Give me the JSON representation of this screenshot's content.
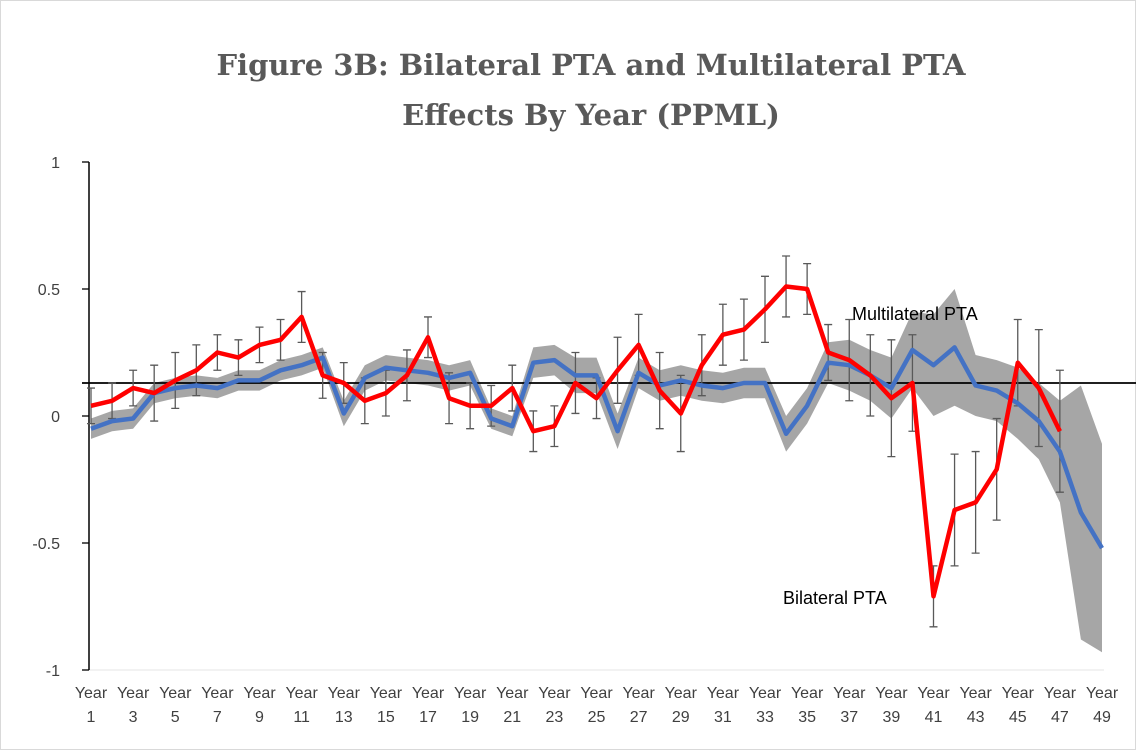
{
  "chart_data": {
    "type": "line",
    "title": "Figure 3B: Bilateral PTA and Multilateral PTA Effects By Year (PPML)",
    "categories": [
      "Year 1",
      null,
      "Year 3",
      null,
      "Year 5",
      null,
      "Year 7",
      null,
      "Year 9",
      null,
      "Year 11",
      null,
      "Year 13",
      null,
      "Year 15",
      null,
      "Year 17",
      null,
      "Year 19",
      null,
      "Year 21",
      null,
      "Year 23",
      null,
      "Year 25",
      null,
      "Year 27",
      null,
      "Year 29",
      null,
      "Year 31",
      null,
      "Year 33",
      null,
      "Year 35",
      null,
      "Year 37",
      null,
      "Year 39",
      null,
      "Year 41",
      null,
      "Year 43",
      null,
      "Year 45",
      null,
      "Year 47",
      null,
      "Year 49"
    ],
    "series": [
      {
        "name": "Bilateral PTA",
        "color": "#ff0000",
        "values": [
          0.04,
          0.06,
          0.11,
          0.09,
          0.14,
          0.18,
          0.25,
          0.23,
          0.28,
          0.3,
          0.39,
          0.16,
          0.13,
          0.06,
          0.09,
          0.16,
          0.31,
          0.07,
          0.04,
          0.04,
          0.11,
          -0.06,
          -0.04,
          0.13,
          0.07,
          0.18,
          0.28,
          0.1,
          0.01,
          0.2,
          0.32,
          0.34,
          0.42,
          0.51,
          0.5,
          0.25,
          0.22,
          0.16,
          0.07,
          0.13,
          -0.71,
          -0.37,
          -0.34,
          -0.21,
          0.21,
          0.11,
          -0.06,
          null,
          null
        ],
        "errors": [
          0.07,
          0.07,
          0.07,
          0.11,
          0.11,
          0.1,
          0.07,
          0.07,
          0.07,
          0.08,
          0.1,
          0.09,
          0.08,
          0.09,
          0.09,
          0.1,
          0.08,
          0.1,
          0.09,
          0.08,
          0.09,
          0.08,
          0.08,
          0.12,
          0.08,
          0.13,
          0.12,
          0.15,
          0.15,
          0.12,
          0.12,
          0.12,
          0.13,
          0.12,
          0.1,
          0.11,
          0.16,
          0.16,
          0.23,
          0.19,
          0.12,
          0.22,
          0.2,
          0.2,
          0.17,
          0.23,
          0.24,
          null,
          null
        ]
      },
      {
        "name": "Multilateral PTA",
        "color": "#4472c4",
        "values": [
          -0.05,
          -0.02,
          -0.01,
          0.09,
          0.11,
          0.12,
          0.11,
          0.14,
          0.14,
          0.18,
          0.2,
          0.23,
          0.01,
          0.15,
          0.19,
          0.18,
          0.17,
          0.15,
          0.17,
          -0.01,
          -0.04,
          0.21,
          0.22,
          0.16,
          0.16,
          -0.06,
          0.17,
          0.12,
          0.14,
          0.12,
          0.11,
          0.13,
          0.13,
          -0.07,
          0.04,
          0.21,
          0.2,
          0.16,
          0.11,
          0.26,
          0.2,
          0.27,
          0.12,
          0.1,
          0.05,
          -0.02,
          -0.14,
          -0.38,
          -0.52
        ],
        "band": [
          0.04,
          0.04,
          0.04,
          0.04,
          0.04,
          0.04,
          0.04,
          0.04,
          0.04,
          0.04,
          0.04,
          0.04,
          0.05,
          0.05,
          0.05,
          0.05,
          0.05,
          0.05,
          0.05,
          0.04,
          0.04,
          0.06,
          0.06,
          0.07,
          0.07,
          0.07,
          0.06,
          0.06,
          0.06,
          0.06,
          0.06,
          0.06,
          0.06,
          0.07,
          0.07,
          0.08,
          0.1,
          0.1,
          0.12,
          0.15,
          0.2,
          0.23,
          0.12,
          0.12,
          0.14,
          0.15,
          0.2,
          0.5,
          0.41
        ],
        "band_color": "#a6a6a6"
      }
    ],
    "reference_line": 0.13,
    "ylim": [
      -1,
      1
    ],
    "yticks": [
      -1,
      -0.5,
      0,
      0.5,
      1
    ]
  }
}
